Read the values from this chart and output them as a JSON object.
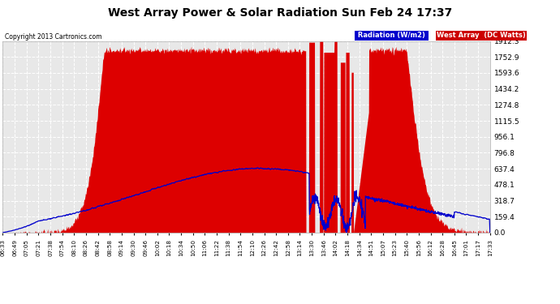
{
  "title": "West Array Power & Solar Radiation Sun Feb 24 17:37",
  "copyright": "Copyright 2013 Cartronics.com",
  "y_ticks": [
    0.0,
    159.4,
    318.7,
    478.1,
    637.4,
    796.8,
    956.1,
    1115.5,
    1274.8,
    1434.2,
    1593.6,
    1752.9,
    1912.3
  ],
  "y_max": 1912.3,
  "bg_color": "#ffffff",
  "plot_bg_color": "#e8e8e8",
  "grid_color": "#ffffff",
  "red_fill_color": "#dd0000",
  "blue_line_color": "#0000cc",
  "legend_radiation_bg": "#0000cc",
  "legend_west_bg": "#cc0000",
  "x_labels": [
    "06:33",
    "06:49",
    "07:05",
    "07:21",
    "07:38",
    "07:54",
    "08:10",
    "08:26",
    "08:42",
    "08:58",
    "09:14",
    "09:30",
    "09:46",
    "10:02",
    "10:18",
    "10:34",
    "10:50",
    "11:06",
    "11:22",
    "11:38",
    "11:54",
    "12:10",
    "12:26",
    "12:42",
    "12:58",
    "13:14",
    "13:30",
    "13:46",
    "14:02",
    "14:18",
    "14:34",
    "14:51",
    "15:07",
    "15:23",
    "15:40",
    "15:56",
    "16:12",
    "16:28",
    "16:45",
    "17:01",
    "17:17",
    "17:33"
  ]
}
